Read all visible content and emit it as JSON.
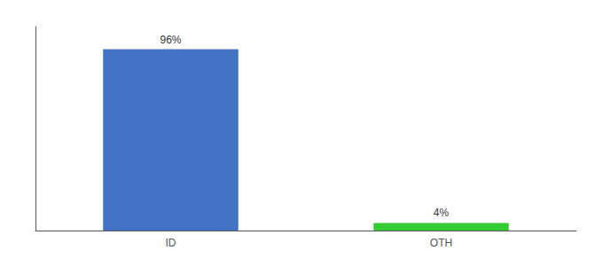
{
  "chart_data": {
    "type": "bar",
    "categories": [
      "ID",
      "OTH"
    ],
    "values": [
      96,
      4
    ],
    "colors": [
      "#4472c4",
      "#33cc33"
    ],
    "value_labels": [
      "96%",
      "4%"
    ],
    "data_labels": true,
    "ylim": [
      0,
      108
    ],
    "yticks": [],
    "grid": false,
    "tick_labels": "x"
  }
}
